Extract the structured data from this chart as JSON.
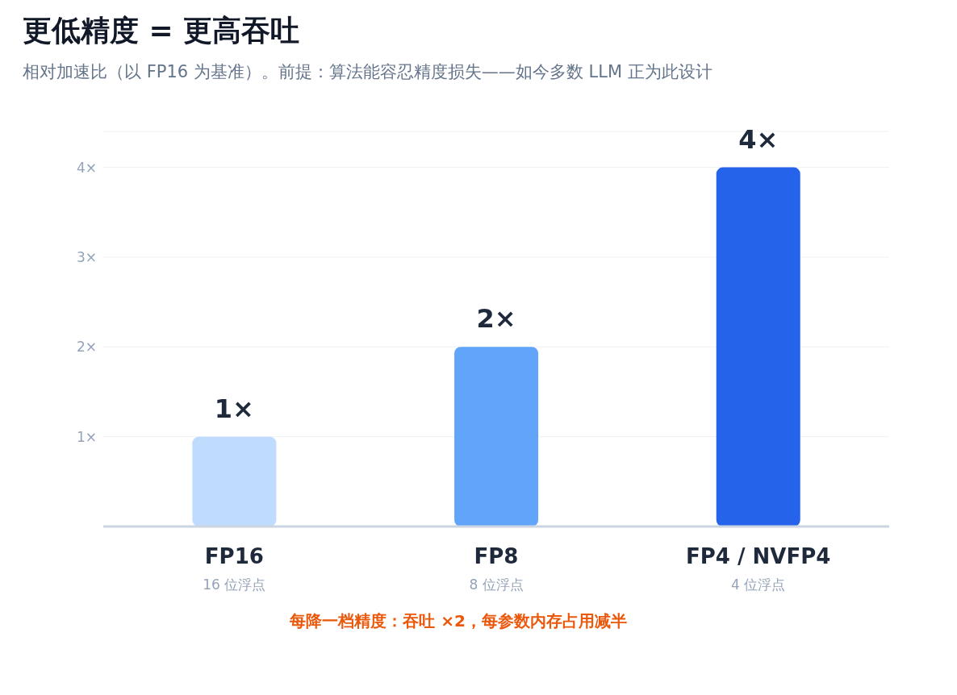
{
  "chart_data": {
    "type": "bar",
    "title": "更低精度 = 更高吞吐",
    "subtitle": "相对加速比（以 FP16 为基准）。前提：算法能容忍精度损失——如今多数 LLM 正为此设计",
    "categories": [
      "FP16\n16 位浮点",
      "FP8\n8 位浮点",
      "FP4 / NVFP4\n4 位浮点"
    ],
    "values": [
      1,
      2,
      4
    ],
    "colors": [
      "#bfdbfe",
      "#60a5fa",
      "#2563eb"
    ],
    "value_labels": [
      "1×",
      "2×",
      "4×"
    ],
    "ylim": [
      0,
      4.4
    ],
    "yticks": [
      {
        "value": 0,
        "label": null
      },
      {
        "value": 1,
        "label": "1×"
      },
      {
        "value": 2,
        "label": "2×"
      },
      {
        "value": 3,
        "label": "3×"
      },
      {
        "value": 4,
        "label": "4×"
      }
    ],
    "grid": "y",
    "annotations": [
      "每降一档精度：吞吐 ×2，每参数内存占用减半"
    ]
  }
}
